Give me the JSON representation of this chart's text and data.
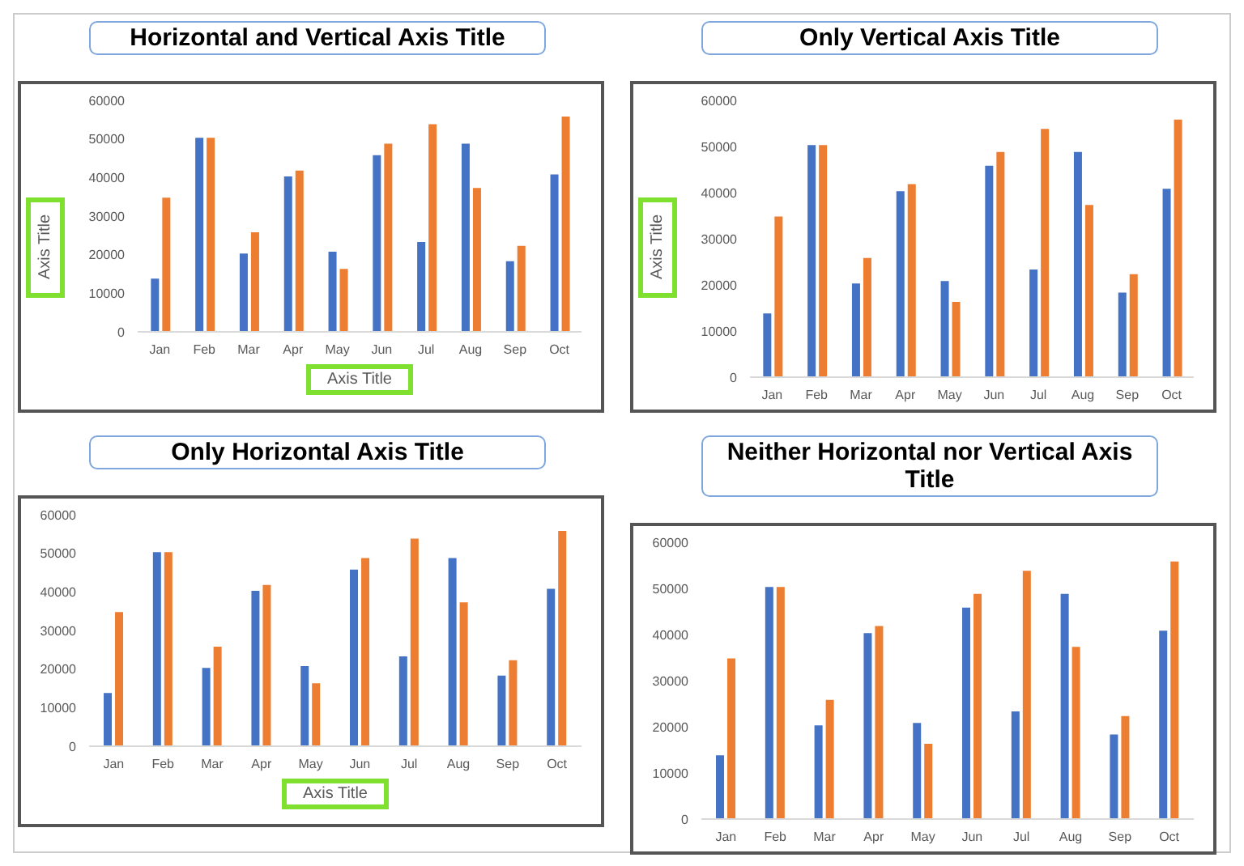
{
  "chart_data": [
    {
      "type": "bar",
      "title": "Horizontal and Vertical Axis Title",
      "xlabel": "Axis Title",
      "ylabel": "Axis Title",
      "categories": [
        "Jan",
        "Feb",
        "Mar",
        "Apr",
        "May",
        "Jun",
        "Jul",
        "Aug",
        "Sep",
        "Oct"
      ],
      "series": [
        {
          "color": "#4472c4",
          "values": [
            14000,
            50500,
            20500,
            40500,
            21000,
            46000,
            23500,
            49000,
            18500,
            41000
          ]
        },
        {
          "color": "#ed7d31",
          "values": [
            35000,
            50500,
            26000,
            42000,
            16500,
            49000,
            54000,
            37500,
            22500,
            56000
          ]
        }
      ],
      "ylim": [
        0,
        60000
      ],
      "yticks": [
        0,
        10000,
        20000,
        30000,
        40000,
        50000,
        60000
      ],
      "grid": false,
      "legend": false
    },
    {
      "type": "bar",
      "title": "Only Vertical Axis Title",
      "ylabel": "Axis Title",
      "categories": [
        "Jan",
        "Feb",
        "Mar",
        "Apr",
        "May",
        "Jun",
        "Jul",
        "Aug",
        "Sep",
        "Oct"
      ],
      "series": [
        {
          "color": "#4472c4",
          "values": [
            14000,
            50500,
            20500,
            40500,
            21000,
            46000,
            23500,
            49000,
            18500,
            41000
          ]
        },
        {
          "color": "#ed7d31",
          "values": [
            35000,
            50500,
            26000,
            42000,
            16500,
            49000,
            54000,
            37500,
            22500,
            56000
          ]
        }
      ],
      "ylim": [
        0,
        60000
      ],
      "yticks": [
        0,
        10000,
        20000,
        30000,
        40000,
        50000,
        60000
      ],
      "grid": false,
      "legend": false
    },
    {
      "type": "bar",
      "title": "Only Horizontal Axis Title",
      "xlabel": "Axis Title",
      "categories": [
        "Jan",
        "Feb",
        "Mar",
        "Apr",
        "May",
        "Jun",
        "Jul",
        "Aug",
        "Sep",
        "Oct"
      ],
      "series": [
        {
          "color": "#4472c4",
          "values": [
            14000,
            50500,
            20500,
            40500,
            21000,
            46000,
            23500,
            49000,
            18500,
            41000
          ]
        },
        {
          "color": "#ed7d31",
          "values": [
            35000,
            50500,
            26000,
            42000,
            16500,
            49000,
            54000,
            37500,
            22500,
            56000
          ]
        }
      ],
      "ylim": [
        0,
        60000
      ],
      "yticks": [
        0,
        10000,
        20000,
        30000,
        40000,
        50000,
        60000
      ],
      "grid": false,
      "legend": false
    },
    {
      "type": "bar",
      "title": "Neither Horizontal nor Vertical Axis Title",
      "categories": [
        "Jan",
        "Feb",
        "Mar",
        "Apr",
        "May",
        "Jun",
        "Jul",
        "Aug",
        "Sep",
        "Oct"
      ],
      "series": [
        {
          "color": "#4472c4",
          "values": [
            14000,
            50500,
            20500,
            40500,
            21000,
            46000,
            23500,
            49000,
            18500,
            41000
          ]
        },
        {
          "color": "#ed7d31",
          "values": [
            35000,
            50500,
            26000,
            42000,
            16500,
            49000,
            54000,
            37500,
            22500,
            56000
          ]
        }
      ],
      "ylim": [
        0,
        60000
      ],
      "yticks": [
        0,
        10000,
        20000,
        30000,
        40000,
        50000,
        60000
      ],
      "grid": false,
      "legend": false
    }
  ]
}
